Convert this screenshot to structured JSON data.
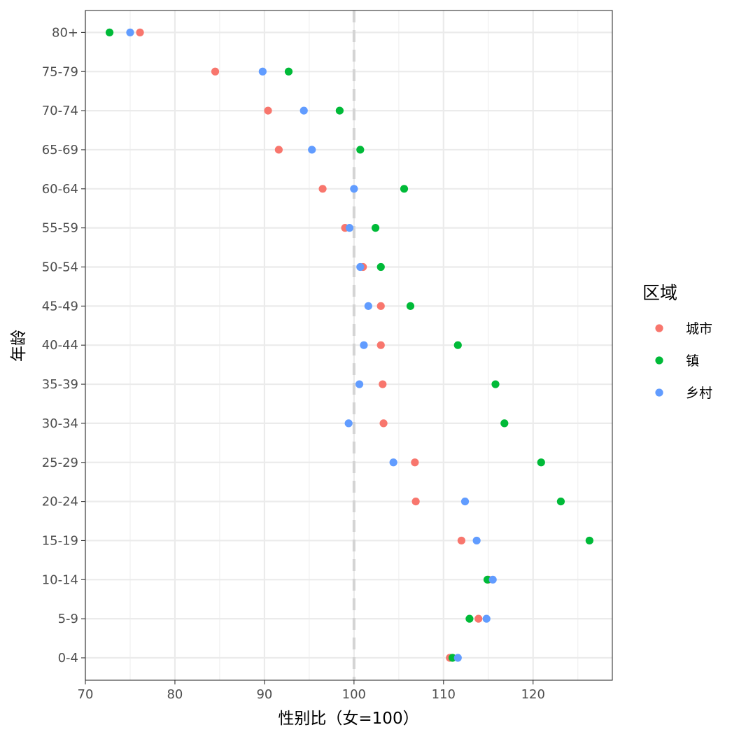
{
  "chart_data": {
    "type": "scatter",
    "title": "",
    "xlabel": "性别比（女=100）",
    "ylabel": "年龄",
    "xlim": [
      70,
      129
    ],
    "x_ticks": [
      70,
      80,
      90,
      100,
      110,
      120
    ],
    "reference_line": {
      "x": 100,
      "style": "dashed",
      "color": "#d4d4d4"
    },
    "categories": [
      "0-4",
      "5-9",
      "10-14",
      "15-19",
      "20-24",
      "25-29",
      "30-34",
      "35-39",
      "40-44",
      "45-49",
      "50-54",
      "55-59",
      "60-64",
      "65-69",
      "70-74",
      "75-79",
      "80+"
    ],
    "legend": {
      "title": "区域",
      "position": "right"
    },
    "grid": true,
    "series": [
      {
        "name": "城市",
        "color": "#f8766d",
        "values": [
          110.7,
          113.9,
          115.0,
          112.0,
          106.9,
          106.8,
          103.3,
          103.2,
          103.0,
          103.0,
          101.0,
          99.0,
          96.5,
          91.6,
          90.4,
          84.5,
          76.1
        ]
      },
      {
        "name": "镇",
        "color": "#00ba38",
        "values": [
          111.0,
          112.9,
          114.9,
          126.3,
          123.1,
          120.9,
          116.8,
          115.8,
          111.6,
          106.3,
          103.0,
          102.4,
          105.6,
          100.7,
          98.4,
          92.7,
          72.7
        ]
      },
      {
        "name": "乡村",
        "color": "#619cff",
        "values": [
          111.6,
          114.8,
          115.5,
          113.7,
          112.4,
          104.4,
          99.4,
          100.6,
          101.1,
          101.6,
          100.7,
          99.5,
          100.0,
          95.3,
          94.4,
          89.8,
          75.0
        ]
      }
    ]
  }
}
